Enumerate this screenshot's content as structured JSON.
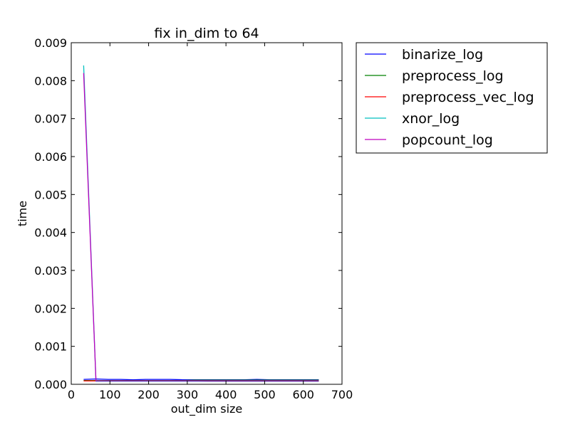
{
  "chart_data": {
    "type": "line",
    "title": "fix in_dim to 64",
    "xlabel": "out_dim size",
    "ylabel": "time",
    "xlim": [
      0,
      700
    ],
    "ylim": [
      0,
      0.009
    ],
    "xticks": [
      0,
      100,
      200,
      300,
      400,
      500,
      600,
      700
    ],
    "xtick_labels": [
      "0",
      "100",
      "200",
      "300",
      "400",
      "500",
      "600",
      "700"
    ],
    "yticks": [
      0,
      0.001,
      0.002,
      0.003,
      0.004,
      0.005,
      0.006,
      0.007,
      0.008,
      0.009
    ],
    "ytick_labels": [
      "0.000",
      "0.001",
      "0.002",
      "0.003",
      "0.004",
      "0.005",
      "0.006",
      "0.007",
      "0.008",
      "0.009"
    ],
    "grid": false,
    "legend_position": "outside-right-top",
    "x": [
      32,
      64,
      96,
      128,
      160,
      192,
      224,
      256,
      288,
      320,
      352,
      384,
      416,
      448,
      480,
      512,
      544,
      576,
      608,
      640
    ],
    "series": [
      {
        "name": "binarize_log",
        "color": "#0000ff",
        "values": [
          0.00013,
          0.00014,
          0.00013,
          0.00013,
          0.00012,
          0.00013,
          0.00013,
          0.00013,
          0.00012,
          0.00012,
          0.00012,
          0.00012,
          0.00012,
          0.00012,
          0.00013,
          0.00012,
          0.00012,
          0.00012,
          0.00012,
          0.00012
        ]
      },
      {
        "name": "preprocess_log",
        "color": "#008000",
        "values": [
          0.0001,
          0.0001,
          0.0001,
          0.0001,
          0.0001,
          0.0001,
          0.0001,
          0.0001,
          0.0001,
          0.00011,
          0.00011,
          0.00011,
          0.00011,
          0.00011,
          0.00011,
          0.00011,
          0.00011,
          0.00011,
          0.00011,
          0.00011
        ]
      },
      {
        "name": "preprocess_vec_log",
        "color": "#ff0000",
        "values": [
          9e-05,
          9e-05,
          9e-05,
          9e-05,
          9e-05,
          9e-05,
          9e-05,
          9e-05,
          9e-05,
          9e-05,
          8e-05,
          8e-05,
          8e-05,
          8e-05,
          8e-05,
          8e-05,
          8e-05,
          8e-05,
          8e-05,
          8e-05
        ]
      },
      {
        "name": "xnor_log",
        "color": "#00bfbf",
        "values": [
          0.0084,
          8e-05,
          8e-05,
          8e-05,
          8e-05,
          8e-05,
          8e-05,
          8e-05,
          8e-05,
          8e-05,
          8e-05,
          8e-05,
          8e-05,
          8e-05,
          8e-05,
          8e-05,
          8e-05,
          8e-05,
          8e-05,
          8e-05
        ]
      },
      {
        "name": "popcount_log",
        "color": "#bf00bf",
        "values": [
          0.0082,
          9e-05,
          9e-05,
          9e-05,
          9e-05,
          9e-05,
          9e-05,
          9e-05,
          9e-05,
          9e-05,
          9e-05,
          9e-05,
          9e-05,
          9e-05,
          9e-05,
          9e-05,
          9e-05,
          9e-05,
          9e-05,
          9e-05
        ]
      }
    ]
  }
}
